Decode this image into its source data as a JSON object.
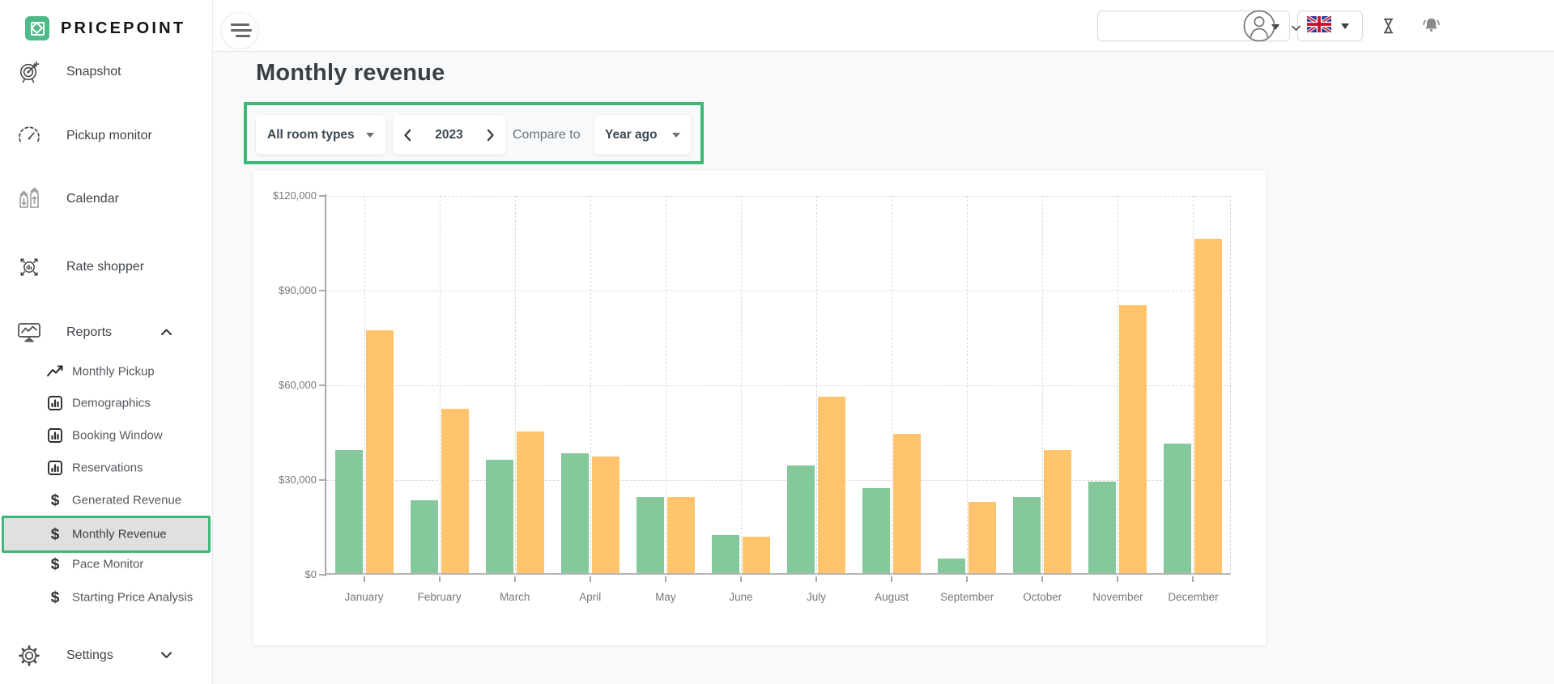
{
  "app": {
    "brand": "PRICEPOINT"
  },
  "topbar": {
    "workspace_select_value": "",
    "language_flag": "uk-flag"
  },
  "sidebar": {
    "items": [
      {
        "label": "Snapshot",
        "icon": "target-icon"
      },
      {
        "label": "Pickup monitor",
        "icon": "gauge-icon"
      },
      {
        "label": "Calendar",
        "icon": "calendar-tags-icon"
      },
      {
        "label": "Rate shopper",
        "icon": "rate-shopper-icon"
      },
      {
        "label": "Reports",
        "icon": "reports-monitor-icon",
        "expanded": true
      }
    ],
    "reports_children": [
      {
        "label": "Monthly Pickup",
        "icon": "trend-line-icon"
      },
      {
        "label": "Demographics",
        "icon": "bar-chart-icon"
      },
      {
        "label": "Booking Window",
        "icon": "bar-chart-icon"
      },
      {
        "label": "Reservations",
        "icon": "bar-chart-icon"
      },
      {
        "label": "Generated Revenue",
        "icon": "dollar-icon"
      },
      {
        "label": "Monthly Revenue",
        "icon": "dollar-icon",
        "selected": true
      },
      {
        "label": "Pace Monitor",
        "icon": "dollar-icon"
      },
      {
        "label": "Starting Price Analysis",
        "icon": "dollar-icon"
      }
    ],
    "settings_label": "Settings"
  },
  "page": {
    "title": "Monthly revenue",
    "filters": {
      "room_type": {
        "value": "All room types"
      },
      "year": {
        "value": "2023"
      },
      "compare_label": "Compare to",
      "compare": {
        "value": "Year ago"
      }
    }
  },
  "colors": {
    "accent_green": "#3cb878",
    "logo_green": "#4dba87",
    "bar_current": "#84c89c",
    "bar_compare": "#ffc46c"
  },
  "chart_data": {
    "type": "bar",
    "title": "Monthly revenue",
    "categories": [
      "January",
      "February",
      "March",
      "April",
      "May",
      "June",
      "July",
      "August",
      "September",
      "October",
      "November",
      "December"
    ],
    "series": [
      {
        "name": "2023",
        "color": "#84c89c",
        "values": [
          39000,
          23000,
          36000,
          38000,
          24000,
          12000,
          34000,
          27000,
          4500,
          24000,
          29000,
          41000
        ]
      },
      {
        "name": "Year ago",
        "color": "#ffc46c",
        "values": [
          77000,
          52000,
          45000,
          37000,
          24000,
          11500,
          56000,
          44000,
          22500,
          39000,
          85000,
          106000
        ]
      }
    ],
    "ylim": [
      0,
      120000
    ],
    "y_ticks": [
      0,
      30000,
      60000,
      90000,
      120000
    ],
    "y_tick_labels": [
      "$0",
      "$30,000",
      "$60,000",
      "$90,000",
      "$120,000"
    ],
    "grid": "dashed",
    "legend": "none"
  }
}
